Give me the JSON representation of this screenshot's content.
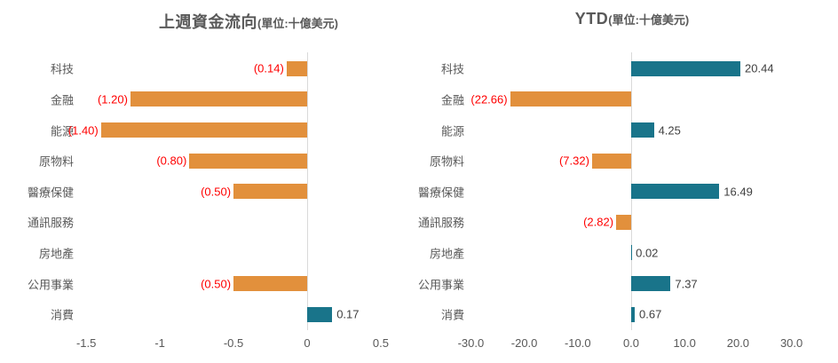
{
  "colors": {
    "positive_bar": "#19748A",
    "negative_bar": "#E2903C",
    "positive_label": "#404040",
    "negative_label": "#FF0000",
    "axis_text": "#595959",
    "title_text": "#595959",
    "axis_line": "#D9D9D9"
  },
  "chart_data": [
    {
      "type": "bar",
      "orientation": "horizontal",
      "title": "上週資金流向",
      "unit_label": "(單位:十億美元)",
      "categories": [
        "科技",
        "金融",
        "能源",
        "原物料",
        "醫療保健",
        "通訊服務",
        "房地產",
        "公用事業",
        "消費"
      ],
      "values": [
        -0.14,
        -1.2,
        -1.4,
        -0.8,
        -0.5,
        null,
        null,
        -0.5,
        0.17
      ],
      "value_labels": [
        "(0.14)",
        "(1.20)",
        "(1.40)",
        "(0.80)",
        "(0.50)",
        "",
        "",
        "(0.50)",
        "0.17"
      ],
      "xlim": [
        -1.7,
        0.6
      ],
      "grid": false,
      "legend": "none",
      "ticks": [
        {
          "label": "-1.5",
          "v": -1.5
        },
        {
          "label": "-1",
          "v": -1
        },
        {
          "label": "-0.5",
          "v": -0.5
        },
        {
          "label": "0",
          "v": 0
        },
        {
          "label": "0.5",
          "v": 0.5
        }
      ]
    },
    {
      "type": "bar",
      "orientation": "horizontal",
      "title": "YTD",
      "unit_label": "(單位:十億美元)",
      "categories": [
        "科技",
        "金融",
        "能源",
        "原物料",
        "醫療保健",
        "通訊服務",
        "房地產",
        "公用事業",
        "消費"
      ],
      "values": [
        20.44,
        -22.66,
        4.25,
        -7.32,
        16.49,
        -2.82,
        0.02,
        7.37,
        0.67
      ],
      "value_labels": [
        "20.44",
        "(22.66)",
        "4.25",
        "(7.32)",
        "16.49",
        "(2.82)",
        "0.02",
        "7.37",
        "0.67"
      ],
      "xlim": [
        -30.4,
        30.7
      ],
      "grid": false,
      "legend": "none",
      "ticks": [
        {
          "label": "-30.0",
          "v": -30
        },
        {
          "label": "-20.0",
          "v": -20
        },
        {
          "label": "-10.0",
          "v": -10
        },
        {
          "label": "0.0",
          "v": 0
        },
        {
          "label": "10.0",
          "v": 10
        },
        {
          "label": "20.0",
          "v": 20
        },
        {
          "label": "30.0",
          "v": 30
        }
      ]
    }
  ]
}
